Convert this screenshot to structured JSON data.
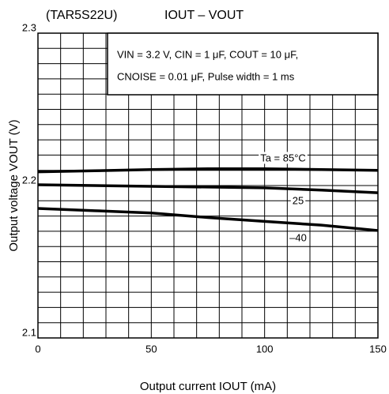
{
  "chart_data": {
    "type": "line",
    "title": "(TAR5S22U)",
    "subtitle": "IOUT – VOUT",
    "annotations": [
      "VIN = 3.2 V, CIN = 1 μF, COUT = 10 μF,",
      "CNOISE = 0.01 μF, Pulse width = 1 ms"
    ],
    "x_label": "Output current  IOUT  (mA)",
    "y_label": "Output voltage  VOUT  (V)",
    "x": [
      0,
      25,
      50,
      75,
      100,
      125,
      150
    ],
    "series": [
      {
        "name": "Ta = 85°C",
        "color": "#000000",
        "values": [
          2.209,
          2.2097,
          2.2105,
          2.211,
          2.211,
          2.2105,
          2.21
        ]
      },
      {
        "name": "25",
        "color": "#000000",
        "values": [
          2.2005,
          2.2,
          2.1995,
          2.199,
          2.1985,
          2.197,
          2.1953
        ]
      },
      {
        "name": "–40",
        "color": "#000000",
        "values": [
          2.185,
          2.1835,
          2.182,
          2.179,
          2.1765,
          2.174,
          2.1705
        ]
      }
    ],
    "xlim": [
      0,
      150
    ],
    "xticks": [
      0,
      50,
      100,
      150
    ],
    "ylim": [
      2.1,
      2.3
    ],
    "yticks": [
      2.1,
      2.2,
      2.3
    ],
    "xgrid": [
      0,
      10,
      20,
      30,
      40,
      50,
      60,
      70,
      80,
      90,
      100,
      110,
      120,
      130,
      140,
      150
    ],
    "ygrid": [
      2.1,
      2.11,
      2.12,
      2.13,
      2.14,
      2.15,
      2.16,
      2.17,
      2.18,
      2.19,
      2.2,
      2.21,
      2.22,
      2.23,
      2.24,
      2.25,
      2.26,
      2.27,
      2.28,
      2.29,
      2.3
    ],
    "grid": true
  }
}
